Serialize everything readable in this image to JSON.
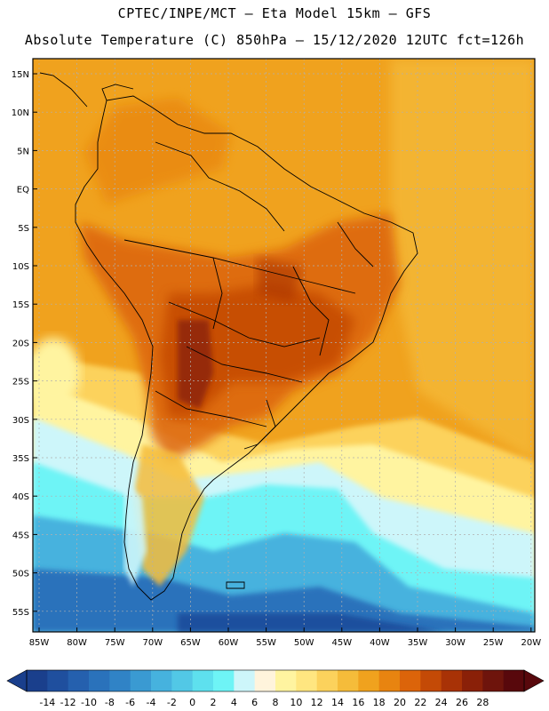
{
  "title_line1": "CPTEC/INPE/MCT –  Eta Model 15km – GFS",
  "title_line2": "Absolute Temperature (C) 850hPa – 15/12/2020 12UTC fct=126h",
  "lat_ticks": [
    "15N",
    "10N",
    "5N",
    "EQ",
    "5S",
    "10S",
    "15S",
    "20S",
    "25S",
    "30S",
    "35S",
    "40S",
    "45S",
    "50S",
    "55S"
  ],
  "lon_ticks": [
    "85W",
    "80W",
    "75W",
    "70W",
    "65W",
    "60W",
    "55W",
    "50W",
    "45W",
    "40W",
    "35W",
    "30W",
    "25W",
    "20W"
  ],
  "colorbar": {
    "labels": [
      "-14",
      "-12",
      "-10",
      "-8",
      "-6",
      "-4",
      "-2",
      "0",
      "2",
      "4",
      "6",
      "8",
      "10",
      "12",
      "14",
      "16",
      "18",
      "20",
      "22",
      "24",
      "26",
      "28"
    ],
    "colors": [
      "#1a3f8c",
      "#1f4f9e",
      "#2560ae",
      "#2a72bb",
      "#3083c6",
      "#3a9ad2",
      "#46b2de",
      "#52c8e6",
      "#5ee0ee",
      "#6ef4f6",
      "#cdf6fa",
      "#fff4dc",
      "#fff4a0",
      "#ffe680",
      "#fcd25c",
      "#f5bc3a",
      "#f0a21e",
      "#e88410",
      "#dc640a",
      "#c44a06",
      "#a83206",
      "#8a2008",
      "#6e140c",
      "#58080c"
    ]
  }
}
